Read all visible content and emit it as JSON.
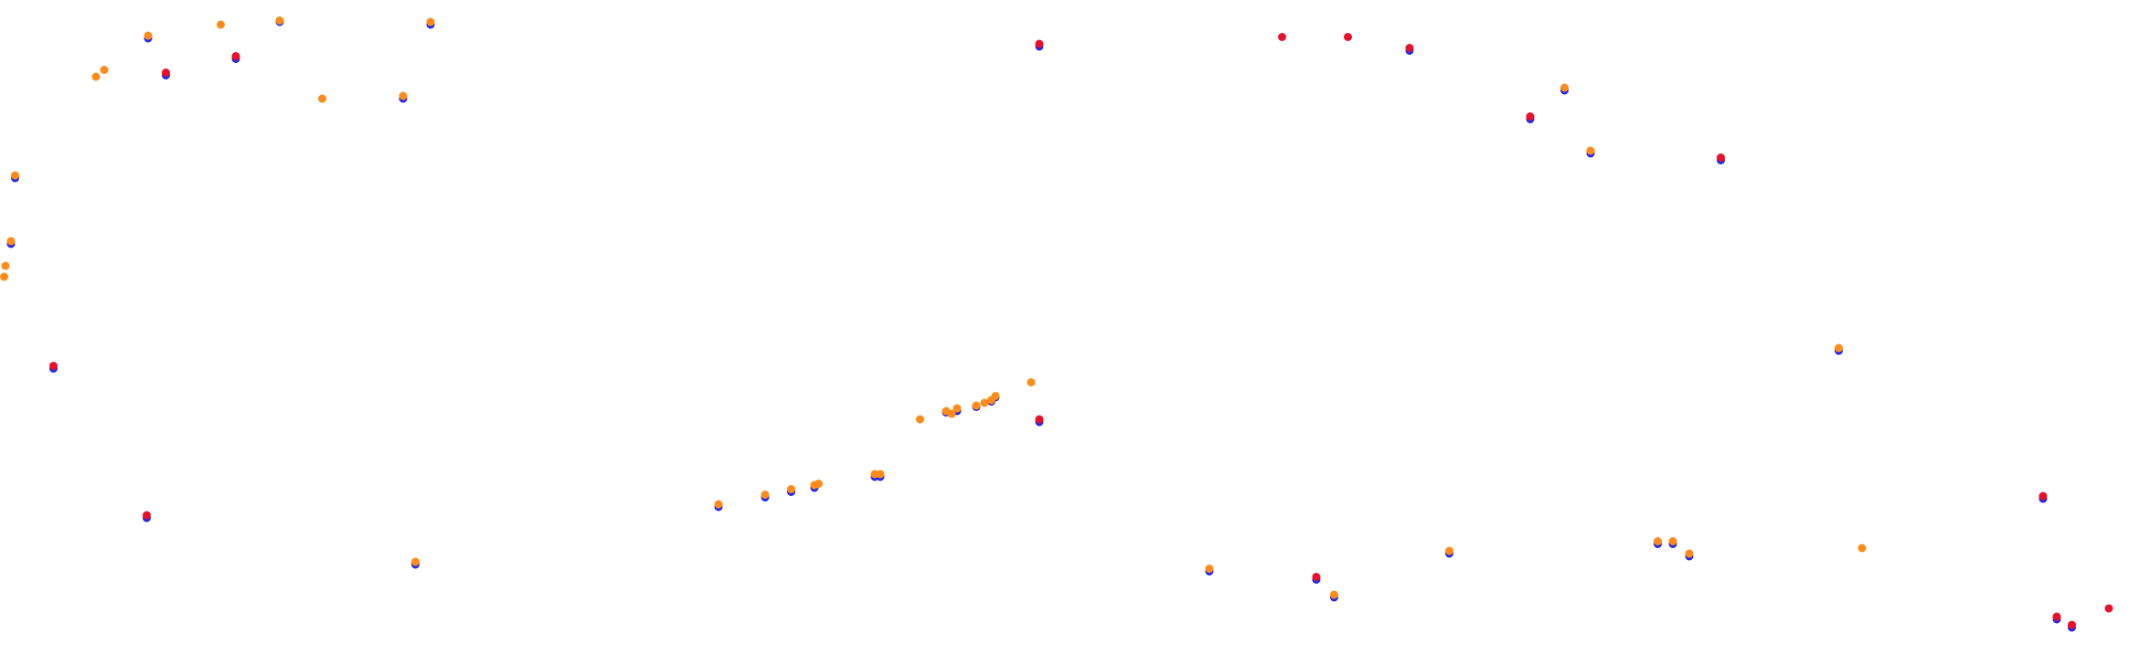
{
  "chart_data": {
    "type": "scatter",
    "xlim": [
      0,
      1568
    ],
    "ylim": [
      478,
      0
    ],
    "series": [
      {
        "color": "#2a2ae0",
        "x": [
          108,
          204,
          314,
          121,
          172,
          294,
          11,
          8,
          39,
          107,
          303,
          758,
          1028,
          1116,
          1141,
          1160,
          1255,
          1341,
          524,
          558,
          577,
          594,
          638,
          642,
          690,
          698,
          712,
          723,
          726,
          758,
          882,
          960,
          973,
          1057,
          1209,
          1220,
          1232,
          1490,
          1500,
          1511
        ],
        "y": [
          28,
          16,
          18,
          55,
          43,
          72,
          130,
          178,
          269,
          378,
          412,
          34,
          37,
          87,
          66,
          112,
          117,
          256,
          370,
          363,
          359,
          356,
          348,
          348,
          301,
          300,
          297,
          293,
          290,
          308,
          417,
          423,
          436,
          404,
          397,
          397,
          406,
          364,
          452,
          458
        ]
      },
      {
        "color": "#e8102a",
        "x": [
          121,
          172,
          39,
          107,
          758,
          935,
          983,
          1028,
          1116,
          1255,
          758,
          960,
          1490,
          1500,
          1511,
          1538
        ],
        "y": [
          53,
          41,
          267,
          376,
          32,
          27,
          27,
          35,
          85,
          115,
          306,
          421,
          362,
          450,
          456,
          444
        ]
      },
      {
        "color": "#ff8c1a",
        "x": [
          108,
          161,
          204,
          314,
          70,
          76,
          235,
          294,
          11,
          8,
          4,
          3,
          303,
          1141,
          1160,
          1341,
          524,
          558,
          577,
          594,
          597,
          638,
          642,
          671,
          690,
          694,
          698,
          712,
          718,
          723,
          726,
          752,
          882,
          973,
          1057,
          1209,
          1220,
          1232,
          1358
        ],
        "y": [
          26,
          18,
          15,
          16,
          56,
          51,
          72,
          70,
          128,
          176,
          194,
          202,
          410,
          64,
          110,
          254,
          368,
          361,
          357,
          354,
          353,
          346,
          346,
          306,
          300,
          302,
          298,
          296,
          294,
          292,
          289,
          279,
          415,
          434,
          402,
          395,
          395,
          404,
          400
        ]
      }
    ]
  }
}
